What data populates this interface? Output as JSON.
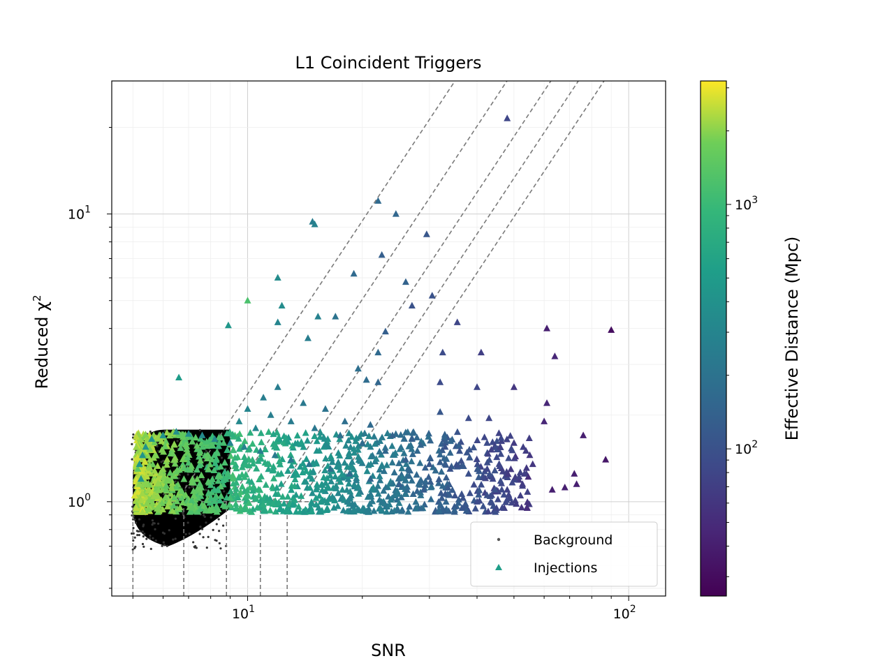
{
  "chart_data": {
    "type": "scatter",
    "title": "L1 Coincident Triggers",
    "xlabel": "SNR",
    "ylabel": "Reduced χ",
    "ylabel_exponent": "2",
    "xscale": "log",
    "yscale": "log",
    "xlim": [
      4.4,
      125
    ],
    "ylim": [
      0.47,
      29
    ],
    "x_ticks": [
      {
        "value": 10,
        "base": "10",
        "exp": "1"
      },
      {
        "value": 100,
        "base": "10",
        "exp": "2"
      }
    ],
    "y_ticks": [
      {
        "value": 1,
        "base": "10",
        "exp": "0"
      },
      {
        "value": 10,
        "base": "10",
        "exp": "1"
      }
    ],
    "grid": true,
    "legend": {
      "placement": "lower-right",
      "entries": [
        {
          "label": "Background",
          "marker": "dot",
          "color": "#555555"
        },
        {
          "label": "Injections",
          "marker": "triangle",
          "color": "#1f9e89"
        }
      ]
    },
    "colorbar": {
      "label": "Effective Distance (Mpc)",
      "scale": "log",
      "range": [
        25,
        3200
      ],
      "ticks": [
        {
          "value": 100,
          "base": "10",
          "exp": "2"
        },
        {
          "value": 1000,
          "base": "10",
          "exp": "3"
        }
      ]
    },
    "threshold_curves": [
      {
        "snr_min": 5.0,
        "chi2_min": 1.0,
        "slope": 2,
        "snr_ref": 6.5
      },
      {
        "snr_min": 6.8,
        "chi2_min": 1.0,
        "slope": 2,
        "snr_ref": 8.9
      },
      {
        "snr_min": 8.8,
        "chi2_min": 1.0,
        "slope": 2,
        "snr_ref": 11.6
      },
      {
        "snr_min": 10.8,
        "chi2_min": 1.0,
        "slope": 2,
        "snr_ref": 13.7
      },
      {
        "snr_min": 12.7,
        "chi2_min": 1.0,
        "slope": 2,
        "snr_ref": 16.0
      }
    ],
    "background_region": {
      "snr_range": [
        5.0,
        9.0
      ],
      "chi2_range": [
        0.68,
        1.78
      ],
      "color": "#000000"
    },
    "series": [
      {
        "name": "Injections",
        "marker": "triangle",
        "points": [
          [
            5.05,
            1.05,
            2700
          ],
          [
            5.1,
            0.95,
            2400
          ],
          [
            5.2,
            1.15,
            2000
          ],
          [
            5.3,
            0.92,
            2200
          ],
          [
            5.15,
            1.3,
            1500
          ],
          [
            6.6,
            2.7,
            500
          ],
          [
            8.9,
            4.1,
            450
          ],
          [
            10.0,
            5.0,
            1200
          ],
          [
            12.0,
            6.0,
            350
          ],
          [
            12.3,
            4.8,
            350
          ],
          [
            12.0,
            4.2,
            300
          ],
          [
            14.8,
            9.4,
            250
          ],
          [
            15.0,
            9.2,
            280
          ],
          [
            14.4,
            3.7,
            250
          ],
          [
            15.3,
            4.4,
            280
          ],
          [
            17.0,
            4.4,
            200
          ],
          [
            19.0,
            6.2,
            160
          ],
          [
            22.0,
            11.1,
            160
          ],
          [
            24.5,
            10.0,
            150
          ],
          [
            22.5,
            7.2,
            130
          ],
          [
            26.0,
            5.8,
            140
          ],
          [
            29.5,
            8.5,
            110
          ],
          [
            30.5,
            5.2,
            100
          ],
          [
            27.0,
            4.8,
            100
          ],
          [
            23.0,
            3.9,
            130
          ],
          [
            22.0,
            3.3,
            160
          ],
          [
            19.5,
            2.9,
            180
          ],
          [
            20.5,
            2.65,
            170
          ],
          [
            22.0,
            2.6,
            150
          ],
          [
            32.5,
            3.3,
            90
          ],
          [
            35.5,
            4.2,
            80
          ],
          [
            41.0,
            3.3,
            70
          ],
          [
            32.0,
            2.6,
            90
          ],
          [
            40.0,
            2.5,
            80
          ],
          [
            50.0,
            2.5,
            60
          ],
          [
            48.0,
            21.5,
            80
          ],
          [
            61.0,
            4.0,
            40
          ],
          [
            64.0,
            3.2,
            45
          ],
          [
            90.0,
            3.95,
            30
          ],
          [
            61.0,
            2.2,
            45
          ],
          [
            60.0,
            1.9,
            45
          ],
          [
            76.0,
            1.7,
            40
          ],
          [
            87.0,
            1.4,
            35
          ],
          [
            72.0,
            1.25,
            40
          ],
          [
            73.0,
            1.15,
            40
          ],
          [
            68.0,
            1.12,
            40
          ],
          [
            63.0,
            1.1,
            40
          ],
          [
            32.0,
            2.05,
            110
          ],
          [
            38.0,
            1.95,
            90
          ],
          [
            43.0,
            1.95,
            80
          ],
          [
            46.0,
            1.55,
            70
          ],
          [
            50.0,
            1.6,
            65
          ],
          [
            55.0,
            1.45,
            60
          ],
          [
            56.0,
            1.35,
            60
          ],
          [
            42.5,
            1.6,
            90
          ],
          [
            36.0,
            1.5,
            100
          ],
          [
            33.0,
            1.55,
            100
          ],
          [
            27.0,
            1.65,
            130
          ],
          [
            24.0,
            1.7,
            140
          ],
          [
            21.0,
            1.85,
            160
          ],
          [
            18.0,
            1.9,
            180
          ],
          [
            16.0,
            2.1,
            200
          ],
          [
            14.0,
            2.2,
            230
          ],
          [
            12.0,
            2.5,
            250
          ],
          [
            11.0,
            2.3,
            260
          ],
          [
            10.0,
            2.1,
            300
          ],
          [
            9.5,
            1.9,
            320
          ],
          [
            10.5,
            1.8,
            300
          ],
          [
            11.5,
            2.0,
            260
          ],
          [
            13.0,
            1.9,
            240
          ],
          [
            15.0,
            1.8,
            220
          ],
          [
            17.5,
            1.7,
            190
          ],
          [
            20.0,
            1.6,
            170
          ],
          [
            23.0,
            1.5,
            150
          ],
          [
            26.0,
            1.4,
            130
          ],
          [
            30.0,
            1.35,
            110
          ],
          [
            34.0,
            1.3,
            100
          ],
          [
            38.0,
            1.25,
            95
          ],
          [
            44.0,
            1.2,
            80
          ],
          [
            48.0,
            1.1,
            75
          ],
          [
            52.0,
            1.05,
            70
          ],
          [
            45.0,
            0.95,
            80
          ],
          [
            40.0,
            1.0,
            90
          ],
          [
            35.0,
            1.05,
            100
          ],
          [
            29.0,
            1.1,
            120
          ],
          [
            25.0,
            1.15,
            130
          ],
          [
            21.0,
            1.2,
            150
          ],
          [
            18.5,
            1.25,
            170
          ],
          [
            16.5,
            1.3,
            190
          ],
          [
            14.5,
            1.35,
            210
          ],
          [
            13.0,
            1.4,
            230
          ],
          [
            11.8,
            1.45,
            240
          ],
          [
            10.8,
            1.5,
            260
          ],
          [
            9.8,
            1.55,
            280
          ],
          [
            9.0,
            1.6,
            300
          ],
          [
            8.2,
            1.65,
            320
          ],
          [
            7.6,
            1.7,
            340
          ],
          [
            7.0,
            1.72,
            360
          ],
          [
            6.5,
            1.75,
            380
          ],
          [
            6.0,
            1.7,
            400
          ],
          [
            5.6,
            1.65,
            420
          ],
          [
            5.4,
            1.55,
            420
          ],
          [
            5.3,
            1.45,
            420
          ],
          [
            5.2,
            1.35,
            440
          ],
          [
            5.25,
            1.2,
            460
          ]
        ]
      }
    ],
    "injection_cloud": {
      "snr_range": [
        5.1,
        55
      ],
      "chi2_range": [
        0.92,
        1.75
      ],
      "count": 1300
    }
  }
}
